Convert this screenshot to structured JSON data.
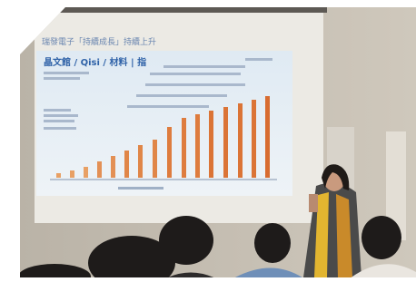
{
  "slide": {
    "headline": "瑞發電子「持續成長」持續上升",
    "title": "晶文館 / Qisi / 材料 | 指"
  }
}
